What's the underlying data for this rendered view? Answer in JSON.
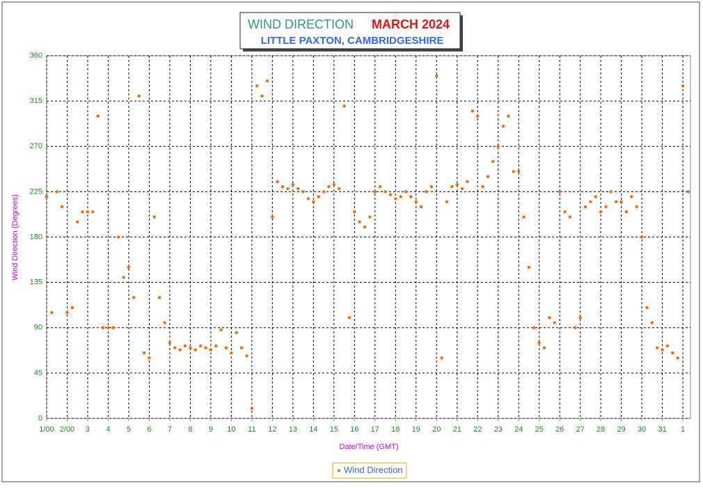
{
  "chart_data": {
    "type": "scatter",
    "title": "WIND DIRECTION",
    "title_date": "MARCH  2024",
    "subtitle": "LITTLE PAXTON, CAMBRIDGESHIRE",
    "x_label": "Date/Time (GMT)",
    "y_label": "Wind Direction (Degrees)",
    "xlim": [
      0,
      31.37
    ],
    "ylim": [
      0,
      360
    ],
    "xticks": [
      {
        "value": 0,
        "label": "1/00"
      },
      {
        "value": 1,
        "label": "2/00"
      },
      {
        "value": 2,
        "label": "3"
      },
      {
        "value": 3,
        "label": "4"
      },
      {
        "value": 4,
        "label": "5"
      },
      {
        "value": 5,
        "label": "6"
      },
      {
        "value": 6,
        "label": "7"
      },
      {
        "value": 7,
        "label": "8"
      },
      {
        "value": 8,
        "label": "9"
      },
      {
        "value": 9,
        "label": "10"
      },
      {
        "value": 10,
        "label": "11"
      },
      {
        "value": 11,
        "label": "12"
      },
      {
        "value": 12,
        "label": "13"
      },
      {
        "value": 13,
        "label": "14"
      },
      {
        "value": 14,
        "label": "15"
      },
      {
        "value": 15,
        "label": "16"
      },
      {
        "value": 16,
        "label": "17"
      },
      {
        "value": 17,
        "label": "18"
      },
      {
        "value": 18,
        "label": "19"
      },
      {
        "value": 19,
        "label": "20"
      },
      {
        "value": 20,
        "label": "21"
      },
      {
        "value": 21,
        "label": "22"
      },
      {
        "value": 22,
        "label": "23"
      },
      {
        "value": 23,
        "label": "24"
      },
      {
        "value": 24,
        "label": "25"
      },
      {
        "value": 25,
        "label": "26"
      },
      {
        "value": 26,
        "label": "27"
      },
      {
        "value": 27,
        "label": "28"
      },
      {
        "value": 28,
        "label": "29"
      },
      {
        "value": 29,
        "label": "30"
      },
      {
        "value": 30,
        "label": "31"
      },
      {
        "value": 31,
        "label": "1"
      }
    ],
    "yticks": [
      0,
      45,
      90,
      135,
      180,
      225,
      270,
      315,
      360
    ],
    "grid": true,
    "series": [
      {
        "name": "Wind Direction",
        "color": "#ff6600",
        "x": [
          0,
          0.25,
          0.5,
          0.75,
          1,
          1.25,
          1.5,
          1.75,
          2,
          2.25,
          2.5,
          2.75,
          3,
          3.25,
          3.5,
          3.75,
          4,
          4.25,
          4.5,
          4.75,
          5,
          5.25,
          5.5,
          5.75,
          6,
          6.25,
          6.5,
          6.75,
          7,
          7.25,
          7.5,
          7.75,
          8,
          8.25,
          8.5,
          8.75,
          9,
          9.25,
          9.5,
          9.75,
          10,
          10.25,
          10.5,
          10.75,
          11,
          11.25,
          11.5,
          11.75,
          12,
          12.25,
          12.5,
          12.75,
          13,
          13.25,
          13.5,
          13.75,
          14,
          14.25,
          14.5,
          14.75,
          15,
          15.25,
          15.5,
          15.75,
          16,
          16.25,
          16.5,
          16.75,
          17,
          17.25,
          17.5,
          17.75,
          18,
          18.25,
          18.5,
          18.75,
          19,
          19.25,
          19.5,
          19.75,
          20,
          20.25,
          20.5,
          20.75,
          21,
          21.25,
          21.5,
          21.75,
          22,
          22.25,
          22.5,
          22.75,
          23,
          23.25,
          23.5,
          23.75,
          24,
          24.25,
          24.5,
          24.75,
          25,
          25.25,
          25.5,
          25.75,
          26,
          26.25,
          26.5,
          26.75,
          27,
          27.25,
          27.5,
          27.75,
          28,
          28.25,
          28.5,
          28.75,
          29,
          29.25,
          29.5,
          29.75,
          30,
          30.25,
          30.5,
          30.75,
          31,
          31.25
        ],
        "values": [
          220,
          105,
          225,
          210,
          105,
          110,
          195,
          205,
          205,
          205,
          300,
          90,
          90,
          90,
          180,
          140,
          150,
          120,
          320,
          65,
          60,
          200,
          120,
          95,
          75,
          70,
          68,
          72,
          70,
          68,
          72,
          70,
          68,
          72,
          88,
          70,
          65,
          85,
          70,
          62,
          10,
          330,
          320,
          335,
          200,
          235,
          230,
          228,
          232,
          228,
          225,
          218,
          215,
          220,
          225,
          230,
          232,
          228,
          310,
          100,
          205,
          195,
          190,
          200,
          225,
          230,
          225,
          222,
          218,
          220,
          225,
          220,
          215,
          210,
          225,
          230,
          340,
          60,
          215,
          230,
          232,
          228,
          235,
          305,
          300,
          230,
          240,
          255,
          270,
          290,
          300,
          245,
          245,
          200,
          150,
          90,
          75,
          70,
          100,
          95,
          225,
          205,
          200,
          90,
          100,
          210,
          215,
          220,
          205,
          210,
          225,
          215,
          215,
          205,
          220,
          210,
          180,
          110,
          95,
          70,
          68,
          72,
          65,
          60,
          330,
          225
        ]
      }
    ]
  }
}
